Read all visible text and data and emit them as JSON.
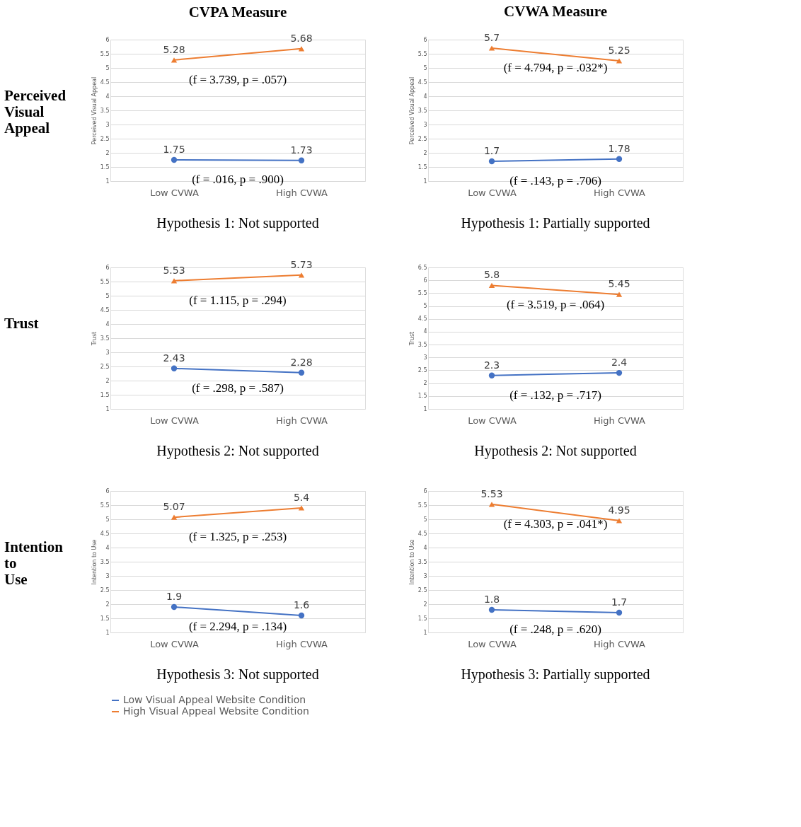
{
  "chart_data": [
    {
      "type": "line",
      "title": "CVPA Measure",
      "ylabel": "Perceived  Visual Appeal",
      "categories": [
        "Low CVWA",
        "High CVWA"
      ],
      "ylim": [
        1,
        6
      ],
      "yticks": [
        1,
        1.5,
        2,
        2.5,
        3,
        3.5,
        4,
        4.5,
        5,
        5.5,
        6
      ],
      "grid": "y",
      "data_labels": true,
      "series": [
        {
          "color": "#4472c4",
          "marker": "circle",
          "values": [
            1.75,
            1.73
          ]
        },
        {
          "color": "#ed7d31",
          "marker": "triangle",
          "values": [
            5.28,
            5.68
          ]
        }
      ],
      "annotations": [
        "(f = .016, p = .900)",
        "(f = 3.739, p = .057)",
        "Perceived Visual Appeal",
        "Hypothesis 1: Not supported"
      ]
    },
    {
      "type": "line",
      "title": "CVWA Measure",
      "ylabel": "Perceived Visual Appeal",
      "categories": [
        "Low CVWA",
        "High CVWA"
      ],
      "ylim": [
        1,
        6
      ],
      "yticks": [
        1,
        1.5,
        2,
        2.5,
        3,
        3.5,
        4,
        4.5,
        5,
        5.5,
        6
      ],
      "grid": "y",
      "data_labels": true,
      "series": [
        {
          "color": "#4472c4",
          "marker": "circle",
          "values": [
            1.7,
            1.78
          ]
        },
        {
          "color": "#ed7d31",
          "marker": "triangle",
          "values": [
            5.7,
            5.25
          ]
        }
      ],
      "annotations": [
        "(f = .143, p = .706)",
        "(f = 4.794, p = .032*)",
        "Hypothesis 1: Partially supported"
      ]
    },
    {
      "type": "line",
      "ylabel": "Trust",
      "categories": [
        "Low CVWA",
        "High CVWA"
      ],
      "ylim": [
        1,
        6
      ],
      "yticks": [
        1,
        1.5,
        2,
        2.5,
        3,
        3.5,
        4,
        4.5,
        5,
        5.5,
        6
      ],
      "grid": "y",
      "data_labels": true,
      "series": [
        {
          "color": "#4472c4",
          "marker": "circle",
          "values": [
            2.43,
            2.28
          ]
        },
        {
          "color": "#ed7d31",
          "marker": "triangle",
          "values": [
            5.53,
            5.73
          ]
        }
      ],
      "annotations": [
        "(f = .298, p = .587)",
        "(f = 1.115, p = .294)",
        "Trust",
        "Hypothesis 2: Not supported"
      ]
    },
    {
      "type": "line",
      "ylabel": "Trust",
      "categories": [
        "Low CVWA",
        "High CVWA"
      ],
      "ylim": [
        1,
        6.5
      ],
      "yticks": [
        1,
        1.5,
        2,
        2.5,
        3,
        3.5,
        4,
        4.5,
        5,
        5.5,
        6,
        6.5
      ],
      "grid": "y",
      "data_labels": true,
      "series": [
        {
          "color": "#4472c4",
          "marker": "circle",
          "values": [
            2.3,
            2.4
          ]
        },
        {
          "color": "#ed7d31",
          "marker": "triangle",
          "values": [
            5.8,
            5.45
          ]
        }
      ],
      "annotations": [
        "(f = .132, p = .717)",
        "(f = 3.519, p = .064)",
        "Hypothesis 2: Not supported"
      ]
    },
    {
      "type": "line",
      "ylabel": "Intention to Use",
      "categories": [
        "Low CVWA",
        "High CVWA"
      ],
      "ylim": [
        1,
        6
      ],
      "yticks": [
        1,
        1.5,
        2,
        2.5,
        3,
        3.5,
        4,
        4.5,
        5,
        5.5,
        6
      ],
      "grid": "y",
      "data_labels": true,
      "series": [
        {
          "color": "#4472c4",
          "marker": "circle",
          "values": [
            1.9,
            1.6
          ]
        },
        {
          "color": "#ed7d31",
          "marker": "triangle",
          "values": [
            5.07,
            5.4
          ]
        }
      ],
      "annotations": [
        "(f = 2.294, p = .134)",
        "(f = 1.325, p = .253)",
        "Intention to Use",
        "Hypothesis 3: Not supported"
      ]
    },
    {
      "type": "line",
      "ylabel": "Intention to Use",
      "categories": [
        "Low CVWA",
        "High CVWA"
      ],
      "ylim": [
        1,
        6
      ],
      "yticks": [
        1,
        1.5,
        2,
        2.5,
        3,
        3.5,
        4,
        4.5,
        5,
        5.5,
        6
      ],
      "grid": "y",
      "data_labels": true,
      "legend": "bottom",
      "series": [
        {
          "name": "Low Visual Appeal Website Condition",
          "color": "#4472c4",
          "marker": "circle",
          "values": [
            1.8,
            1.7
          ]
        },
        {
          "name": "High Visual Appeal Website Condition",
          "color": "#ed7d31",
          "marker": "triangle",
          "values": [
            5.53,
            4.95
          ]
        }
      ],
      "annotations": [
        "(f = .248, p = .620)",
        "(f = 4.303, p = .041*)",
        "Hypothesis 3: Partially supported"
      ]
    }
  ]
}
